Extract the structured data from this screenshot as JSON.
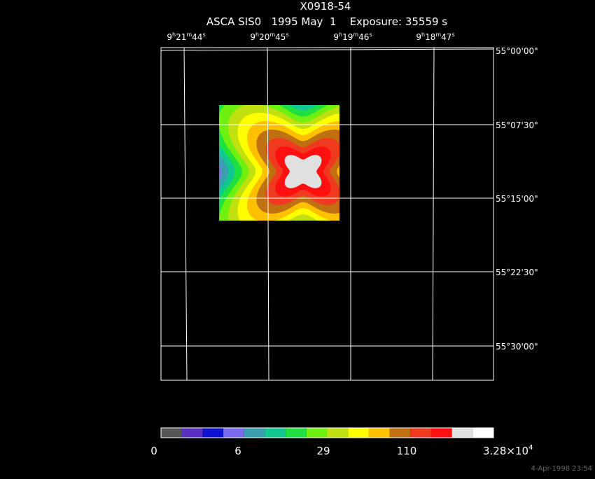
{
  "header": {
    "title": "X0918-54",
    "subtitle": "ASCA SIS0   1995 May  1    Exposure: 35559 s"
  },
  "ra_labels": [
    [
      "9",
      "h",
      "21",
      "m",
      "44",
      "s"
    ],
    [
      "9",
      "h",
      "20",
      "m",
      "45",
      "s"
    ],
    [
      "9",
      "h",
      "19",
      "m",
      "46",
      "s"
    ],
    [
      "9",
      "h",
      "18",
      "m",
      "47",
      "s"
    ]
  ],
  "dec_labels": [
    "55°00'00\"",
    "55°07'30\"",
    "55°15'00\"",
    "55°22'30\"",
    "55°30'00\""
  ],
  "colorbar": {
    "labels": [
      "0",
      "6",
      "29",
      "110"
    ],
    "max_label": {
      "base": "3.28×10",
      "exponent": "4"
    },
    "colors": [
      "#555555",
      "#5a30c0",
      "#1010d0",
      "#7a6af0",
      "#3aa0b0",
      "#10c890",
      "#20e040",
      "#70f010",
      "#c0e010",
      "#ffff00",
      "#ffc000",
      "#c07010",
      "#f03a20",
      "#ff1010",
      "#e0e0e0",
      "#ffffff"
    ]
  },
  "timestamp": "4-Apr-1998 23:54"
}
